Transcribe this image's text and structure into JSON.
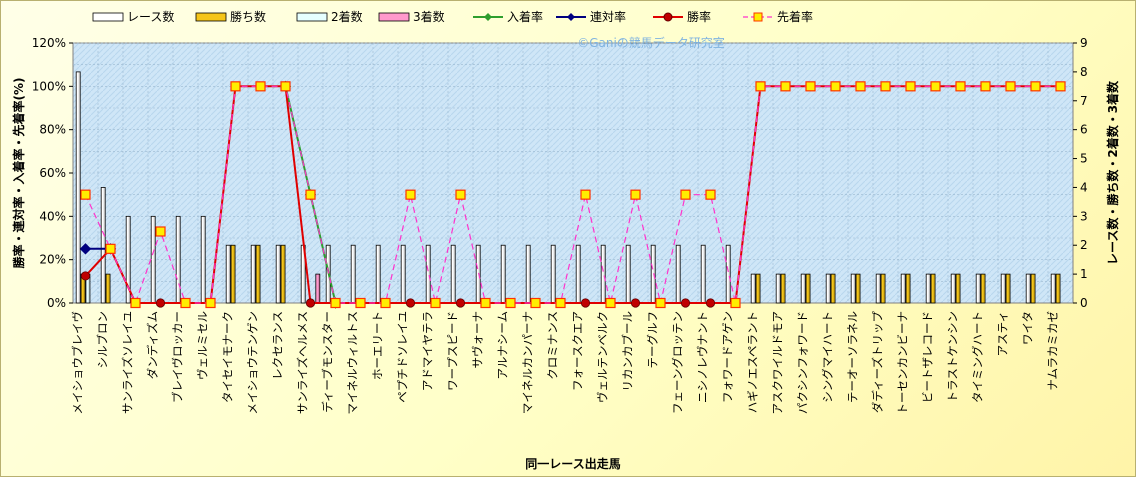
{
  "chart_data": {
    "type": "bar",
    "watermark": "©Ganiの競馬データ研究室",
    "xlabel": "同一レース出走馬",
    "ylabel_left": "勝率・連対率・入着率・先着率(%)",
    "ylabel_right": "レース数・勝ち数・2着数・3着数",
    "ylim_left": [
      0,
      120
    ],
    "ylim_right": [
      0,
      9
    ],
    "yticks_left": [
      "0%",
      "20%",
      "40%",
      "60%",
      "80%",
      "100%",
      "120%"
    ],
    "yticks_right": [
      "0",
      "1",
      "2",
      "3",
      "4",
      "5",
      "6",
      "7",
      "8",
      "9"
    ],
    "grid": true,
    "legend_position": "top",
    "categories": [
      "メイショウブレイヴ",
      "シルブロン",
      "サンライズソレイユ",
      "ダンディズム",
      "ブレイヴロッカー",
      "ヴェルミセル",
      "タイセイモナーク",
      "メイショウテンゲン",
      "レクセランス",
      "サンライズヘルメス",
      "ディーブモンスター",
      "マイネルウィルトス",
      "ホーエリート",
      "ペプチドソレイユ",
      "アドマイヤテラ",
      "ワープスピード",
      "サヴォーナ",
      "アルナシーム",
      "マイネルカンパーナ",
      "クロミナンス",
      "フォースクエア",
      "ヴェルテンベルク",
      "リカンカブール",
      "テーグルフ",
      "フェーングロッテン",
      "ニシノレヴナント",
      "フォワードアゲン",
      "ハギノエスペラント",
      "アスクワイルドモア",
      "パクシンフォワード",
      "シングマイハート",
      "テーオーソラネル",
      "ダディーズトリップ",
      "トーセンカンビーナ",
      "ビートザレコード",
      "トラストケンシン",
      "タイミングハート",
      "アスティ",
      "ワイタ",
      "ナムラカミカゼ"
    ],
    "series": [
      {
        "name": "レース数",
        "axis": "right",
        "kind": "bar",
        "color": "#ffffff",
        "values": [
          8,
          4,
          3,
          3,
          3,
          3,
          2,
          2,
          2,
          2,
          2,
          2,
          2,
          2,
          2,
          2,
          2,
          2,
          2,
          2,
          2,
          2,
          2,
          2,
          2,
          2,
          2,
          1,
          1,
          1,
          1,
          1,
          1,
          1,
          1,
          1,
          1,
          1,
          1,
          1
        ]
      },
      {
        "name": "勝ち数",
        "axis": "right",
        "kind": "bar",
        "color": "#f5c518",
        "values": [
          1,
          1,
          0,
          0,
          0,
          0,
          2,
          2,
          2,
          0,
          0,
          0,
          0,
          0,
          0,
          0,
          0,
          0,
          0,
          0,
          0,
          0,
          0,
          0,
          0,
          0,
          0,
          1,
          1,
          1,
          1,
          1,
          1,
          1,
          1,
          1,
          1,
          1,
          1,
          1
        ]
      },
      {
        "name": "2着数",
        "axis": "right",
        "kind": "bar",
        "color": "#e6ffff",
        "values": [
          1,
          0,
          0,
          0,
          0,
          0,
          0,
          0,
          0,
          0,
          0,
          0,
          0,
          0,
          0,
          0,
          0,
          0,
          0,
          0,
          0,
          0,
          0,
          0,
          0,
          0,
          0,
          0,
          0,
          0,
          0,
          0,
          0,
          0,
          0,
          0,
          0,
          0,
          0,
          0
        ]
      },
      {
        "name": "3着数",
        "axis": "right",
        "kind": "bar",
        "color": "#ff99cc",
        "values": [
          0,
          0,
          0,
          0,
          0,
          0,
          0,
          0,
          0,
          1,
          0,
          0,
          0,
          0,
          0,
          0,
          0,
          0,
          0,
          0,
          0,
          0,
          0,
          0,
          0,
          0,
          0,
          0,
          0,
          0,
          0,
          0,
          0,
          0,
          0,
          0,
          0,
          0,
          0,
          0
        ]
      },
      {
        "name": "入着率",
        "axis": "left",
        "kind": "line",
        "color": "#2e9e2e",
        "marker": "diamond",
        "values": [
          null,
          null,
          null,
          null,
          null,
          null,
          null,
          null,
          100,
          50,
          0,
          null,
          null,
          null,
          null,
          null,
          null,
          null,
          null,
          null,
          null,
          null,
          null,
          null,
          null,
          null,
          null,
          null,
          null,
          null,
          null,
          null,
          null,
          null,
          null,
          null,
          null,
          null,
          null,
          null
        ]
      },
      {
        "name": "連対率",
        "axis": "left",
        "kind": "line",
        "color": "#000080",
        "marker": "diamond",
        "values": [
          25,
          25,
          null,
          null,
          null,
          null,
          null,
          null,
          null,
          null,
          null,
          null,
          null,
          null,
          null,
          null,
          null,
          null,
          null,
          null,
          null,
          null,
          null,
          null,
          null,
          null,
          null,
          null,
          null,
          null,
          null,
          null,
          null,
          null,
          null,
          null,
          null,
          null,
          null,
          null
        ]
      },
      {
        "name": "勝率",
        "axis": "left",
        "kind": "line",
        "color": "#e00000",
        "marker": "circle",
        "values": [
          12.5,
          25,
          0,
          0,
          0,
          0,
          100,
          100,
          100,
          0,
          0,
          0,
          0,
          0,
          0,
          0,
          0,
          0,
          0,
          0,
          0,
          0,
          0,
          0,
          0,
          0,
          0,
          100,
          100,
          100,
          100,
          100,
          100,
          100,
          100,
          100,
          100,
          100,
          100,
          100
        ]
      },
      {
        "name": "先着率",
        "axis": "left",
        "kind": "line-dashed",
        "color": "#ff33cc",
        "marker": "square",
        "marker_fill": "#ffee00",
        "values": [
          50,
          25,
          0,
          33,
          0,
          0,
          100,
          100,
          100,
          50,
          0,
          0,
          0,
          50,
          0,
          50,
          0,
          0,
          0,
          0,
          50,
          0,
          50,
          0,
          50,
          50,
          0,
          100,
          100,
          100,
          100,
          100,
          100,
          100,
          100,
          100,
          100,
          100,
          100,
          100
        ]
      }
    ]
  }
}
